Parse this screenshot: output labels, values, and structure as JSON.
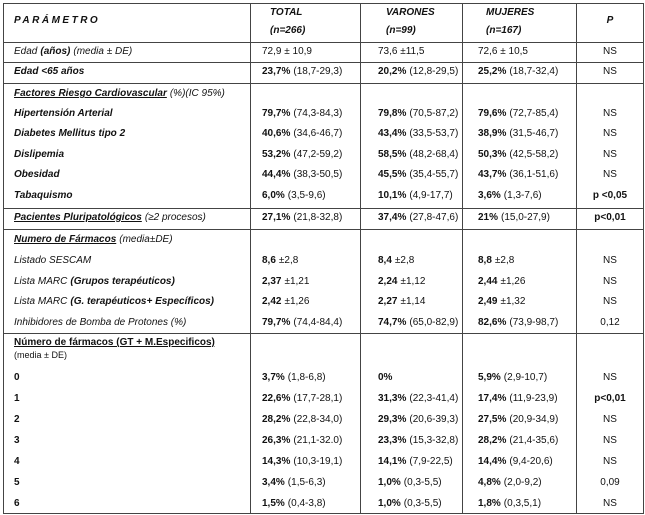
{
  "table": {
    "header": [
      {
        "title": "PARÁMETRO"
      },
      {
        "title": "TOTAL",
        "subtitle": "(n=266)"
      },
      {
        "title": "VARONES",
        "subtitle": "(n=99)"
      },
      {
        "title": "MUJERES",
        "subtitle": "(n=167)"
      },
      {
        "title": "P"
      }
    ],
    "rows": [
      {
        "label": [
          {
            "text": "Edad",
            "style": "italic"
          },
          {
            "text": "(años)",
            "style": "bold-italic"
          },
          {
            "text": "(media ± DE)",
            "style": "italic"
          }
        ],
        "cells": [
          {
            "text": "72,9 ± 10,9"
          },
          {
            "text": "73,6 ±11,5"
          },
          {
            "text": "72,6 ± 10,5"
          },
          {
            "text": "NS"
          }
        ]
      },
      {
        "label": [
          {
            "text": "Edad <65 años",
            "style": "bold-italic"
          }
        ],
        "cells": [
          {
            "strong": "23,7%",
            "text": "(18,7-29,3)"
          },
          {
            "strong": "20,2%",
            "text": "(12,8-29,5)"
          },
          {
            "strong": "25,2%",
            "text": "(18,7-32,4)"
          },
          {
            "text": "NS"
          }
        ]
      },
      {
        "label": [
          {
            "text": "Factores Riesgo Cardiovascular",
            "style": "bold-italic-underline"
          },
          {
            "text": "(%)(IC 95%)",
            "style": "italic"
          }
        ]
      },
      {
        "label": [
          {
            "text": "Hipertensión Arterial",
            "style": "bold-italic"
          }
        ],
        "cells": [
          {
            "strong": "79,7%",
            "text": "(74,3-84,3)"
          },
          {
            "strong": "79,8%",
            "text": "(70,5-87,2)"
          },
          {
            "strong": "79,6%",
            "text": "(72,7-85,4)"
          },
          {
            "text": "NS"
          }
        ]
      },
      {
        "label": [
          {
            "text": "Diabetes Mellitus tipo 2",
            "style": "bold-italic"
          }
        ],
        "cells": [
          {
            "strong": "40,6%",
            "text": "(34,6-46,7)"
          },
          {
            "strong": "43,4%",
            "text": "(33,5-53,7)"
          },
          {
            "strong": "38,9%",
            "text": "(31,5-46,7)"
          },
          {
            "text": "NS"
          }
        ]
      },
      {
        "label": [
          {
            "text": "Dislipemia",
            "style": "bold-italic"
          }
        ],
        "cells": [
          {
            "strong": "53,2%",
            "text": "(47,2-59,2)"
          },
          {
            "strong": "58,5%",
            "text": "(48,2-68,4)"
          },
          {
            "strong": "50,3%",
            "text": "(42,5-58,2)"
          },
          {
            "text": "NS"
          }
        ]
      },
      {
        "label": [
          {
            "text": "Obesidad",
            "style": "bold-italic"
          }
        ],
        "cells": [
          {
            "strong": "44,4%",
            "text": "(38,3-50,5)"
          },
          {
            "strong": "45,5%",
            "text": "(35,4-55,7)"
          },
          {
            "strong": "43,7%",
            "text": "(36,1-51,6)"
          },
          {
            "text": "NS"
          }
        ]
      },
      {
        "label": [
          {
            "text": "Tabaquismo",
            "style": "bold-italic"
          }
        ],
        "cells": [
          {
            "strong": "6,0%",
            "text": "(3,5-9,6)"
          },
          {
            "strong": "10,1%",
            "text": "(4,9-17,7)"
          },
          {
            "strong": "3,6%",
            "text": "(1,3-7,6)"
          },
          {
            "strong": "p <0,05"
          }
        ]
      },
      {
        "label": [
          {
            "text": "Pacientes Pluripatológicos",
            "style": "bold-italic-underline"
          },
          {
            "text": "(≥2 procesos)",
            "style": "italic"
          }
        ],
        "cells": [
          {
            "strong": "27,1%",
            "text": "(21,8-32,8)"
          },
          {
            "strong": "37,4%",
            "text": "(27,8-47,6)"
          },
          {
            "strong": "21%",
            "text": "(15,0-27,9)"
          },
          {
            "strong": "p<0,01"
          }
        ]
      },
      {
        "label": [
          {
            "text": "Numero de Fármacos",
            "style": "bold-italic-underline"
          },
          {
            "text": "(media±DE)",
            "style": "italic"
          }
        ]
      },
      {
        "label": [
          {
            "text": "Listado SESCAM",
            "style": "italic"
          }
        ],
        "cells": [
          {
            "strong": "8,6",
            "text": "±2,8"
          },
          {
            "strong": "8,4",
            "text": "±2,8"
          },
          {
            "strong": "8,8",
            "text": "±2,8"
          },
          {
            "text": "NS"
          }
        ]
      },
      {
        "label": [
          {
            "text": "Lista MARC",
            "style": "italic"
          },
          {
            "text": "(Grupos terapéuticos)",
            "style": "bold-italic"
          }
        ],
        "cells": [
          {
            "strong": "2,37",
            "text": "±1,21"
          },
          {
            "strong": "2,24",
            "text": "±1,12"
          },
          {
            "strong": "2,44",
            "text": "±1,26"
          },
          {
            "text": "NS"
          }
        ]
      },
      {
        "label": [
          {
            "text": "Lista MARC",
            "style": "italic"
          },
          {
            "text": "(G. terapéuticos+ Específicos)",
            "style": "bold-italic"
          }
        ],
        "cells": [
          {
            "strong": "2,42",
            "text": "±1,26"
          },
          {
            "strong": "2,27",
            "text": "±1,14"
          },
          {
            "strong": "2,49",
            "text": "±1,32"
          },
          {
            "text": "NS"
          }
        ]
      },
      {
        "label": [
          {
            "text": "Inhibidores de Bomba de Protones (%)",
            "style": "italic"
          }
        ],
        "cells": [
          {
            "strong": "79,7%",
            "text": "(74,4-84,4)"
          },
          {
            "strong": "74,7%",
            "text": "(65,0-82,9)"
          },
          {
            "strong": "82,6%",
            "text": "(73,9-98,7)"
          },
          {
            "text": "0,12"
          }
        ]
      },
      {
        "label": [
          {
            "text": "Número de fármacos (GT + M.Especificos)",
            "style": "bold-underline"
          },
          {
            "text": "(media ± DE)",
            "style": "note"
          }
        ]
      },
      {
        "label": [
          {
            "text": "0",
            "style": "bold"
          }
        ],
        "cells": [
          {
            "strong": "3,7%",
            "text": "(1,8-6,8)"
          },
          {
            "strong": "0%"
          },
          {
            "strong": "5,9%",
            "text": "(2,9-10,7)"
          },
          {
            "text": "NS"
          }
        ]
      },
      {
        "label": [
          {
            "text": "1",
            "style": "bold"
          }
        ],
        "cells": [
          {
            "strong": "22,6%",
            "text": "(17,7-28,1)"
          },
          {
            "strong": "31,3%",
            "text": "(22,3-41,4)"
          },
          {
            "strong": "17,4%",
            "text": "(11,9-23,9)"
          },
          {
            "strong": "p<0,01"
          }
        ]
      },
      {
        "label": [
          {
            "text": "2",
            "style": "bold"
          }
        ],
        "cells": [
          {
            "strong": "28,2%",
            "text": "(22,8-34,0)"
          },
          {
            "strong": "29,3%",
            "text": "(20,6-39,3)"
          },
          {
            "strong": "27,5%",
            "text": "(20,9-34,9)"
          },
          {
            "text": "NS"
          }
        ]
      },
      {
        "label": [
          {
            "text": "3",
            "style": "bold"
          }
        ],
        "cells": [
          {
            "strong": "26,3%",
            "text": "(21,1-32.0)"
          },
          {
            "strong": "23,3%",
            "text": "(15,3-32,8)"
          },
          {
            "strong": "28,2%",
            "text": "(21,4-35,6)"
          },
          {
            "text": "NS"
          }
        ]
      },
      {
        "label": [
          {
            "text": "4",
            "style": "bold"
          }
        ],
        "cells": [
          {
            "strong": "14,3%",
            "text": "(10,3-19,1)"
          },
          {
            "strong": "14,1%",
            "text": "(7,9-22,5)"
          },
          {
            "strong": "14,4%",
            "text": "(9,4-20,6)"
          },
          {
            "text": "NS"
          }
        ]
      },
      {
        "label": [
          {
            "text": "5",
            "style": "bold"
          }
        ],
        "cells": [
          {
            "strong": "3,4%",
            "text": "(1,5-6,3)"
          },
          {
            "strong": "1,0%",
            "text": "(0,3-5,5)"
          },
          {
            "strong": "4,8%",
            "text": "(2,0-9,2)"
          },
          {
            "text": "0,09"
          }
        ]
      },
      {
        "label": [
          {
            "text": "6",
            "style": "bold"
          }
        ],
        "cells": [
          {
            "strong": "1,5%",
            "text": "(0,4-3,8)"
          },
          {
            "strong": "1,0%",
            "text": "(0,3-5,5)"
          },
          {
            "strong": "1,8%",
            "text": "(0,3,5,1)"
          },
          {
            "text": "NS"
          }
        ]
      }
    ]
  }
}
